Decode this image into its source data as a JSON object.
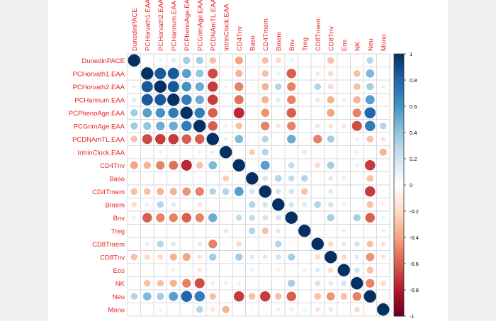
{
  "chart_data": {
    "type": "heatmap",
    "style": "corrplot-circle",
    "labels": [
      "DunedinPACE",
      "PCHorvath1.EAA",
      "PCHorvath2.EAA",
      "PCHannum.EAA",
      "PCPhenoAge.EAA",
      "PCGrimAge.EAA",
      "PCDNAmTL.EAA",
      "IntrinClock.EAA",
      "CD4Tnv",
      "Baso",
      "CD4Tmem",
      "Bmem",
      "Bnv",
      "Treg",
      "CD8Tmem",
      "CD8Tnv",
      "Eos",
      "NK",
      "Neu",
      "Mono"
    ],
    "colorbar": {
      "range": [
        -1,
        1
      ],
      "ticks": [
        "1",
        "0.8",
        "0.6",
        "0.4",
        "0.2",
        "0",
        "-0.2",
        "-0.4",
        "-0.6",
        "-0.8",
        "-1"
      ],
      "colors": [
        "#67001F",
        "#B2182B",
        "#D6604D",
        "#F4A582",
        "#FDDBC7",
        "#FFFFFF",
        "#D1E5F0",
        "#92C5DE",
        "#4393C3",
        "#2166AC",
        "#053061"
      ]
    },
    "label_color": "#E8231F",
    "grid": true,
    "legend": "right",
    "values": [
      [
        1,
        0,
        0.1,
        0.15,
        0.35,
        0.35,
        -0.3,
        0,
        -0.4,
        0.05,
        -0.3,
        -0.2,
        0.1,
        0,
        0,
        -0.3,
        0.03,
        0.03,
        0.3,
        0.05
      ],
      [
        0,
        1,
        0.85,
        0.85,
        0.55,
        0.4,
        -0.65,
        0,
        -0.35,
        0.05,
        -0.3,
        0.1,
        -0.6,
        -0.05,
        0.12,
        -0.2,
        0.02,
        -0.3,
        0.45,
        0.02
      ],
      [
        0.1,
        0.85,
        1,
        0.85,
        0.6,
        0.5,
        -0.7,
        -0.1,
        -0.5,
        0.05,
        -0.35,
        0.3,
        -0.5,
        0,
        0.3,
        -0.2,
        0.03,
        -0.3,
        0.35,
        0.1
      ],
      [
        0.15,
        0.85,
        0.85,
        1,
        0.7,
        0.5,
        -0.7,
        -0.03,
        -0.55,
        0,
        -0.35,
        0.15,
        -0.5,
        0,
        0.15,
        -0.35,
        -0.1,
        -0.35,
        0.55,
        0.05
      ],
      [
        0.35,
        0.55,
        0.6,
        0.7,
        1,
        0.7,
        -0.6,
        -0.03,
        -0.75,
        0.05,
        -0.45,
        0,
        -0.6,
        0.05,
        0,
        -0.4,
        0.03,
        -0.5,
        0.8,
        0
      ],
      [
        0.35,
        0.4,
        0.5,
        0.5,
        0.7,
        1,
        -0.6,
        -0.1,
        -0.3,
        0.05,
        -0.5,
        -0.15,
        -0.5,
        0.03,
        -0.15,
        -0.15,
        -0.15,
        -0.65,
        0.7,
        0.3
      ],
      [
        -0.3,
        -0.65,
        -0.7,
        -0.7,
        -0.6,
        -0.6,
        1,
        0.1,
        0.45,
        0,
        0.3,
        0,
        0.5,
        0,
        -0.5,
        0.35,
        0,
        0.1,
        -0.3,
        -0.15
      ],
      [
        0,
        0,
        -0.1,
        -0.03,
        -0.03,
        -0.1,
        0.1,
        1,
        0.02,
        -0.25,
        0.3,
        0.02,
        0,
        -0.15,
        0,
        0,
        0.05,
        0.1,
        0,
        -0.35
      ],
      [
        -0.4,
        -0.35,
        -0.5,
        -0.55,
        -0.75,
        -0.3,
        0.45,
        0.02,
        1,
        0.02,
        0.55,
        0.02,
        0.25,
        0.03,
        -0.2,
        0.35,
        0.03,
        0.1,
        -0.7,
        0.02
      ],
      [
        0.05,
        0.05,
        0.05,
        0,
        0.05,
        0.05,
        0,
        -0.25,
        0.02,
        1,
        0.2,
        0.3,
        0.25,
        0.3,
        0.02,
        0.15,
        0.1,
        0.03,
        -0.3,
        0.05
      ],
      [
        -0.3,
        -0.3,
        -0.35,
        -0.35,
        -0.45,
        -0.5,
        0.3,
        0.3,
        0.55,
        0.2,
        1,
        0.2,
        0.2,
        -0.3,
        0,
        0.15,
        0,
        0.02,
        -0.7,
        -0.05
      ],
      [
        -0.2,
        0.1,
        0.3,
        0.15,
        0,
        -0.15,
        0,
        0.02,
        0.02,
        0.3,
        0.2,
        1,
        0.2,
        0.15,
        0.3,
        0.2,
        -0.1,
        0,
        -0.3,
        -0.1
      ],
      [
        0.1,
        -0.6,
        -0.5,
        -0.5,
        -0.6,
        -0.5,
        0.5,
        0,
        0.25,
        0.25,
        0.2,
        0.2,
        1,
        0.03,
        -0.05,
        0.35,
        0.05,
        0.35,
        -0.6,
        0.1
      ],
      [
        0,
        -0.05,
        0,
        0,
        0.05,
        0.03,
        0,
        -0.15,
        0.03,
        0.3,
        -0.3,
        0.15,
        0.03,
        1,
        0.05,
        0.02,
        0.1,
        0,
        0,
        0.1
      ],
      [
        0,
        0.12,
        0.3,
        0.15,
        0,
        -0.15,
        -0.5,
        0,
        -0.2,
        0.02,
        0,
        0.3,
        -0.05,
        0.05,
        1,
        -0.2,
        0.15,
        0.2,
        -0.3,
        -0.15
      ],
      [
        -0.3,
        -0.2,
        -0.2,
        -0.35,
        -0.4,
        -0.15,
        0.35,
        0,
        0.35,
        0.15,
        0.15,
        0.2,
        0.35,
        0.02,
        -0.2,
        1,
        -0.2,
        0.15,
        -0.45,
        -0.15
      ],
      [
        0.03,
        0.02,
        0.03,
        -0.1,
        0.03,
        -0.15,
        0,
        0.05,
        0.03,
        0.1,
        0,
        -0.1,
        0.05,
        0.1,
        0.15,
        -0.2,
        1,
        0.2,
        -0.3,
        -0.05
      ],
      [
        0.03,
        -0.3,
        -0.3,
        -0.35,
        -0.5,
        -0.65,
        0.1,
        0.1,
        0.1,
        0.03,
        0.02,
        0,
        0.35,
        0,
        0.2,
        0.15,
        0.2,
        1,
        -0.5,
        -0.2
      ],
      [
        0.3,
        0.45,
        0.35,
        0.55,
        0.8,
        0.7,
        -0.3,
        0,
        -0.7,
        -0.3,
        -0.7,
        -0.3,
        -0.6,
        0,
        -0.3,
        -0.45,
        -0.3,
        -0.5,
        1,
        0.05
      ],
      [
        0.05,
        0.02,
        0.1,
        0.05,
        0,
        0.3,
        -0.15,
        -0.35,
        0.02,
        0.05,
        -0.05,
        -0.1,
        0.1,
        0.1,
        -0.15,
        -0.15,
        -0.05,
        -0.2,
        0.05,
        1
      ]
    ]
  }
}
